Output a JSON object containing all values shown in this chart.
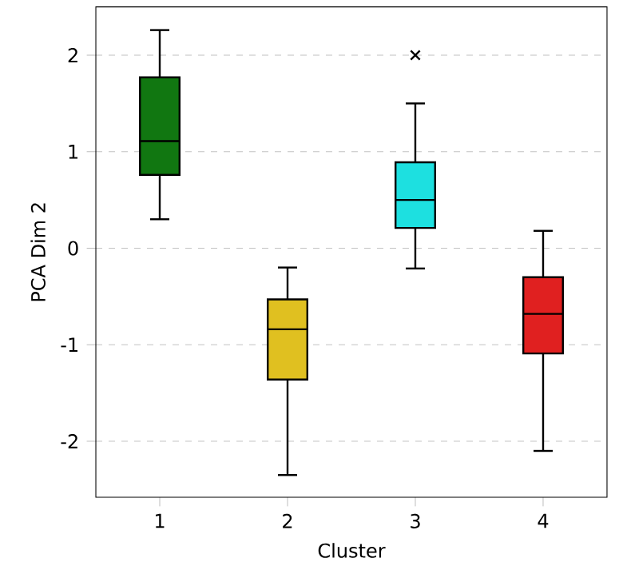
{
  "chart_data": {
    "type": "box",
    "xlabel": "Cluster",
    "ylabel": "PCA Dim 2",
    "categories": [
      "1",
      "2",
      "3",
      "4"
    ],
    "colors": [
      "#117711",
      "#e0c020",
      "#1de0e0",
      "#e02020"
    ],
    "boxes": [
      {
        "low": 0.3,
        "q1": 0.76,
        "median": 1.11,
        "q3": 1.77,
        "high": 2.26
      },
      {
        "low": -2.35,
        "q1": -1.36,
        "median": -0.84,
        "q3": -0.53,
        "high": -0.2
      },
      {
        "low": -0.21,
        "q1": 0.21,
        "median": 0.5,
        "q3": 0.89,
        "high": 1.5,
        "outliers": [
          2.0
        ]
      },
      {
        "low": -2.1,
        "q1": -1.09,
        "median": -0.68,
        "q3": -0.3,
        "high": 0.18
      }
    ],
    "marker": "cross",
    "ylim": [
      -2.58,
      2.5
    ],
    "yticks": [
      -2,
      -1,
      0,
      1,
      2
    ],
    "grid": "y"
  }
}
